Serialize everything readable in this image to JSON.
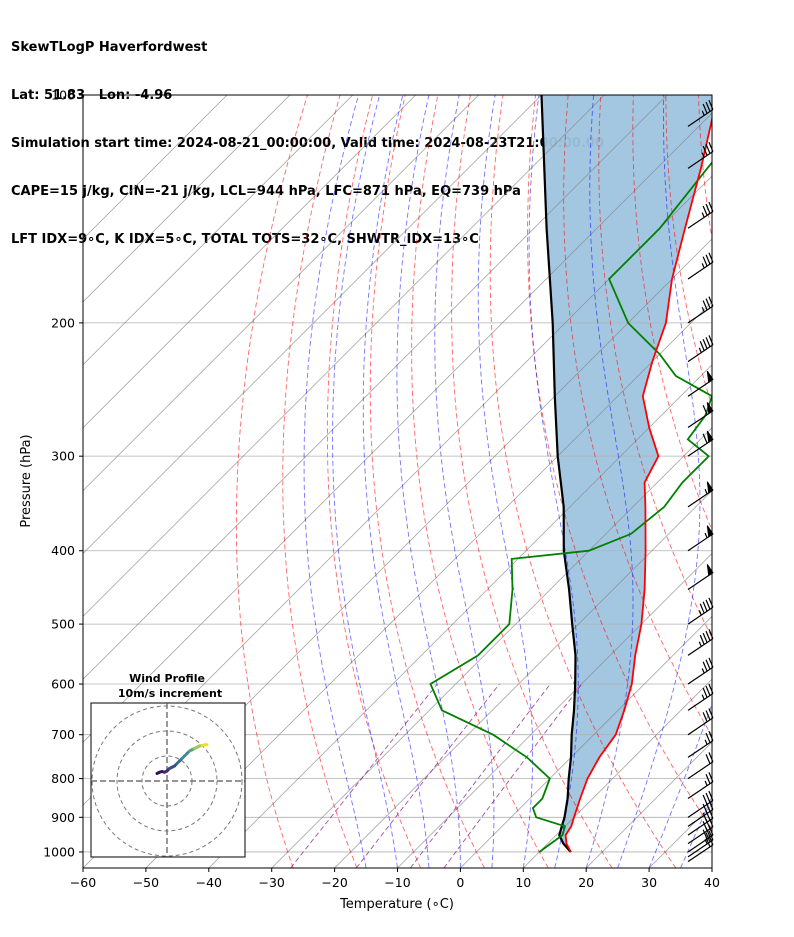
{
  "header": {
    "line1": "SkewTLogP Haverfordwest",
    "line2": "Lat: 51.83   Lon: -4.96",
    "line3": "Simulation start time: 2024-08-21_00:00:00, Valid time: 2024-08-23T21:00:00.00",
    "line4": "CAPE=15 j/kg, CIN=-21 j/kg, LCL=944 hPa, LFC=871 hPa, EQ=739 hPa",
    "line5": "LFT IDX=9∘C, K IDX=5∘C, TOTAL TOTS=32∘C, SHWTR_IDX=13∘C"
  },
  "chart_data": {
    "type": "skewt",
    "xlabel": "Temperature (∘C)",
    "ylabel": "Pressure (hPa)",
    "xlim": [
      -60,
      40
    ],
    "ylim": [
      1050,
      100
    ],
    "xticks": [
      -60,
      -50,
      -40,
      -30,
      -20,
      -10,
      0,
      10,
      20,
      30,
      40
    ],
    "yticks": [
      100,
      200,
      300,
      400,
      500,
      600,
      700,
      800,
      900,
      1000
    ],
    "pressure_scale": "log",
    "grid": true,
    "series": [
      {
        "kind": "temperature",
        "color": "#ff0000",
        "points": [
          [
            1000,
            15
          ],
          [
            975,
            13
          ],
          [
            950,
            11.5
          ],
          [
            925,
            11
          ],
          [
            900,
            10
          ],
          [
            850,
            8
          ],
          [
            800,
            6
          ],
          [
            750,
            4.5
          ],
          [
            700,
            3.5
          ],
          [
            650,
            1
          ],
          [
            600,
            -2
          ],
          [
            550,
            -6
          ],
          [
            500,
            -10
          ],
          [
            450,
            -15
          ],
          [
            400,
            -21
          ],
          [
            350,
            -28
          ],
          [
            325,
            -32
          ],
          [
            300,
            -34
          ],
          [
            275,
            -40
          ],
          [
            250,
            -46
          ],
          [
            225,
            -50
          ],
          [
            200,
            -54
          ],
          [
            175,
            -60
          ],
          [
            150,
            -66
          ],
          [
            125,
            -73
          ],
          [
            100,
            -82
          ]
        ]
      },
      {
        "kind": "dewpoint",
        "color": "#008000",
        "points": [
          [
            1000,
            10
          ],
          [
            975,
            10.5
          ],
          [
            950,
            11
          ],
          [
            925,
            10
          ],
          [
            900,
            4
          ],
          [
            875,
            2
          ],
          [
            850,
            2
          ],
          [
            800,
            0
          ],
          [
            750,
            -7
          ],
          [
            700,
            -16
          ],
          [
            650,
            -28
          ],
          [
            600,
            -34
          ],
          [
            550,
            -31
          ],
          [
            500,
            -31
          ],
          [
            450,
            -36
          ],
          [
            410,
            -41
          ],
          [
            400,
            -30
          ],
          [
            380,
            -26
          ],
          [
            350,
            -25
          ],
          [
            325,
            -26
          ],
          [
            300,
            -26
          ],
          [
            285,
            -32
          ],
          [
            265,
            -33
          ],
          [
            250,
            -35
          ],
          [
            235,
            -44
          ],
          [
            220,
            -50
          ],
          [
            200,
            -60
          ],
          [
            175,
            -70
          ],
          [
            150,
            -70
          ],
          [
            125,
            -72
          ],
          [
            100,
            -74
          ]
        ]
      },
      {
        "kind": "parcel",
        "color": "#000000",
        "points": [
          [
            1000,
            15
          ],
          [
            975,
            12.5
          ],
          [
            950,
            10.5
          ],
          [
            925,
            9.5
          ],
          [
            900,
            8.5
          ],
          [
            850,
            6
          ],
          [
            800,
            3
          ],
          [
            750,
            0
          ],
          [
            700,
            -3.5
          ],
          [
            650,
            -7
          ],
          [
            600,
            -11
          ],
          [
            550,
            -15.5
          ],
          [
            500,
            -21
          ],
          [
            450,
            -27
          ],
          [
            400,
            -34
          ],
          [
            350,
            -41
          ],
          [
            300,
            -50
          ],
          [
            250,
            -60
          ],
          [
            200,
            -72
          ],
          [
            150,
            -88
          ],
          [
            100,
            -110
          ]
        ]
      }
    ],
    "wind_barbs": [
      {
        "p": 1030,
        "speed_kt": 20
      },
      {
        "p": 1015,
        "speed_kt": 25
      },
      {
        "p": 1000,
        "speed_kt": 30
      },
      {
        "p": 975,
        "speed_kt": 30
      },
      {
        "p": 950,
        "speed_kt": 30
      },
      {
        "p": 925,
        "speed_kt": 30
      },
      {
        "p": 900,
        "speed_kt": 30
      },
      {
        "p": 850,
        "speed_kt": 25
      },
      {
        "p": 800,
        "speed_kt": 20
      },
      {
        "p": 750,
        "speed_kt": 25
      },
      {
        "p": 700,
        "speed_kt": 30
      },
      {
        "p": 650,
        "speed_kt": 35
      },
      {
        "p": 600,
        "speed_kt": 35
      },
      {
        "p": 550,
        "speed_kt": 45
      },
      {
        "p": 500,
        "speed_kt": 45
      },
      {
        "p": 450,
        "speed_kt": 50
      },
      {
        "p": 400,
        "speed_kt": 55
      },
      {
        "p": 350,
        "speed_kt": 55
      },
      {
        "p": 300,
        "speed_kt": 60
      },
      {
        "p": 275,
        "speed_kt": 60
      },
      {
        "p": 250,
        "speed_kt": 50
      },
      {
        "p": 225,
        "speed_kt": 45
      },
      {
        "p": 200,
        "speed_kt": 35
      },
      {
        "p": 175,
        "speed_kt": 35
      },
      {
        "p": 150,
        "speed_kt": 35
      },
      {
        "p": 125,
        "speed_kt": 35
      },
      {
        "p": 110,
        "speed_kt": 35
      }
    ],
    "colors": {
      "cape_fill": "#9fc4df",
      "dry_adiabat": "#ff0000",
      "moist_adiabat": "#0000ff",
      "mixing_ratio": "#800080",
      "isotherm": "#808080"
    }
  },
  "hodograph": {
    "title": "Wind Profile",
    "subtitle": "10m/s increment",
    "ring_increment_ms": 10,
    "rings": 3,
    "trace": [
      [
        -4,
        3
      ],
      [
        -3,
        3.5
      ],
      [
        -2,
        3.8
      ],
      [
        -1,
        3.5
      ],
      [
        0,
        4
      ],
      [
        1,
        5
      ],
      [
        2,
        5.5
      ],
      [
        3,
        6
      ],
      [
        4,
        7
      ],
      [
        5,
        8
      ],
      [
        6,
        9
      ],
      [
        7,
        10
      ],
      [
        8,
        11
      ],
      [
        9,
        12
      ],
      [
        10,
        12.5
      ],
      [
        11,
        13
      ],
      [
        12,
        13.5
      ],
      [
        13,
        14
      ],
      [
        14,
        14.2
      ],
      [
        15,
        14.5
      ],
      [
        16,
        14.5
      ]
    ]
  }
}
